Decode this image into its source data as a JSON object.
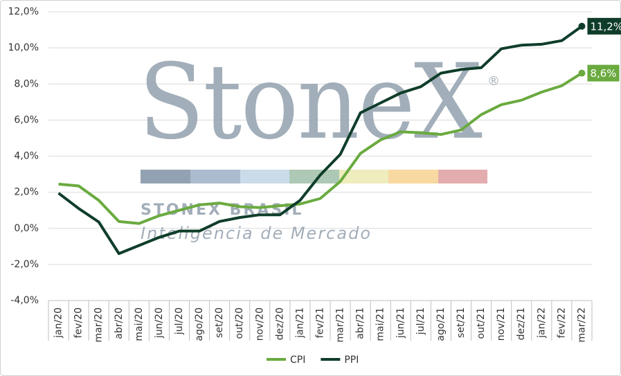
{
  "chart_data": {
    "type": "line",
    "watermark": {
      "logo": "StoneX",
      "mark": "®",
      "name": "STONEX BRASIL",
      "tagline": "Inteligência de Mercado"
    },
    "categories": [
      "jan/20",
      "fev/20",
      "mar/20",
      "abr/20",
      "mai/20",
      "jun/20",
      "jul/20",
      "ago/20",
      "set/20",
      "out/20",
      "nov/20",
      "dez/20",
      "jan/21",
      "fev/21",
      "mar/21",
      "abr/21",
      "mai/21",
      "jun/21",
      "jul/21",
      "ago/21",
      "set/21",
      "out/21",
      "nov/21",
      "dez/21",
      "jan/22",
      "fev/22",
      "mar/22"
    ],
    "series": [
      {
        "name": "CPI",
        "color": "#6aaa3f",
        "values": [
          2.45,
          2.35,
          1.55,
          0.38,
          0.27,
          0.7,
          1.0,
          1.3,
          1.4,
          1.2,
          1.15,
          1.25,
          1.35,
          1.65,
          2.6,
          4.15,
          4.9,
          5.35,
          5.3,
          5.2,
          5.45,
          6.3,
          6.85,
          7.1,
          7.55,
          7.9,
          8.6
        ],
        "value_labels": [
          null,
          null,
          null,
          null,
          null,
          null,
          null,
          null,
          null,
          null,
          null,
          null,
          null,
          null,
          null,
          null,
          null,
          null,
          null,
          null,
          null,
          null,
          null,
          null,
          null,
          null,
          "8,6%"
        ]
      },
      {
        "name": "PPI",
        "color": "#0f3d2a",
        "values": [
          1.95,
          1.1,
          0.35,
          -1.4,
          -0.95,
          -0.5,
          -0.15,
          -0.15,
          0.38,
          0.6,
          0.75,
          0.75,
          1.55,
          2.95,
          4.1,
          6.4,
          6.95,
          7.5,
          7.85,
          8.6,
          8.8,
          8.9,
          9.95,
          10.15,
          10.2,
          10.4,
          11.2
        ],
        "value_labels": [
          null,
          null,
          null,
          null,
          null,
          null,
          null,
          null,
          null,
          null,
          null,
          null,
          null,
          null,
          null,
          null,
          null,
          null,
          null,
          null,
          null,
          null,
          null,
          null,
          null,
          null,
          "11,2%"
        ]
      }
    ],
    "ylim": [
      -4,
      12
    ],
    "yticks": [
      {
        "value": -4,
        "label": "-4,0%"
      },
      {
        "value": -2,
        "label": "-2,0%"
      },
      {
        "value": 0,
        "label": "0,0%"
      },
      {
        "value": 2,
        "label": "2,0%"
      },
      {
        "value": 4,
        "label": "4,0%"
      },
      {
        "value": 6,
        "label": "6,0%"
      },
      {
        "value": 8,
        "label": "8,0%"
      },
      {
        "value": 10,
        "label": "10,0%"
      },
      {
        "value": 12,
        "label": "12,0%"
      }
    ],
    "grid": true,
    "legend": "bottom"
  }
}
